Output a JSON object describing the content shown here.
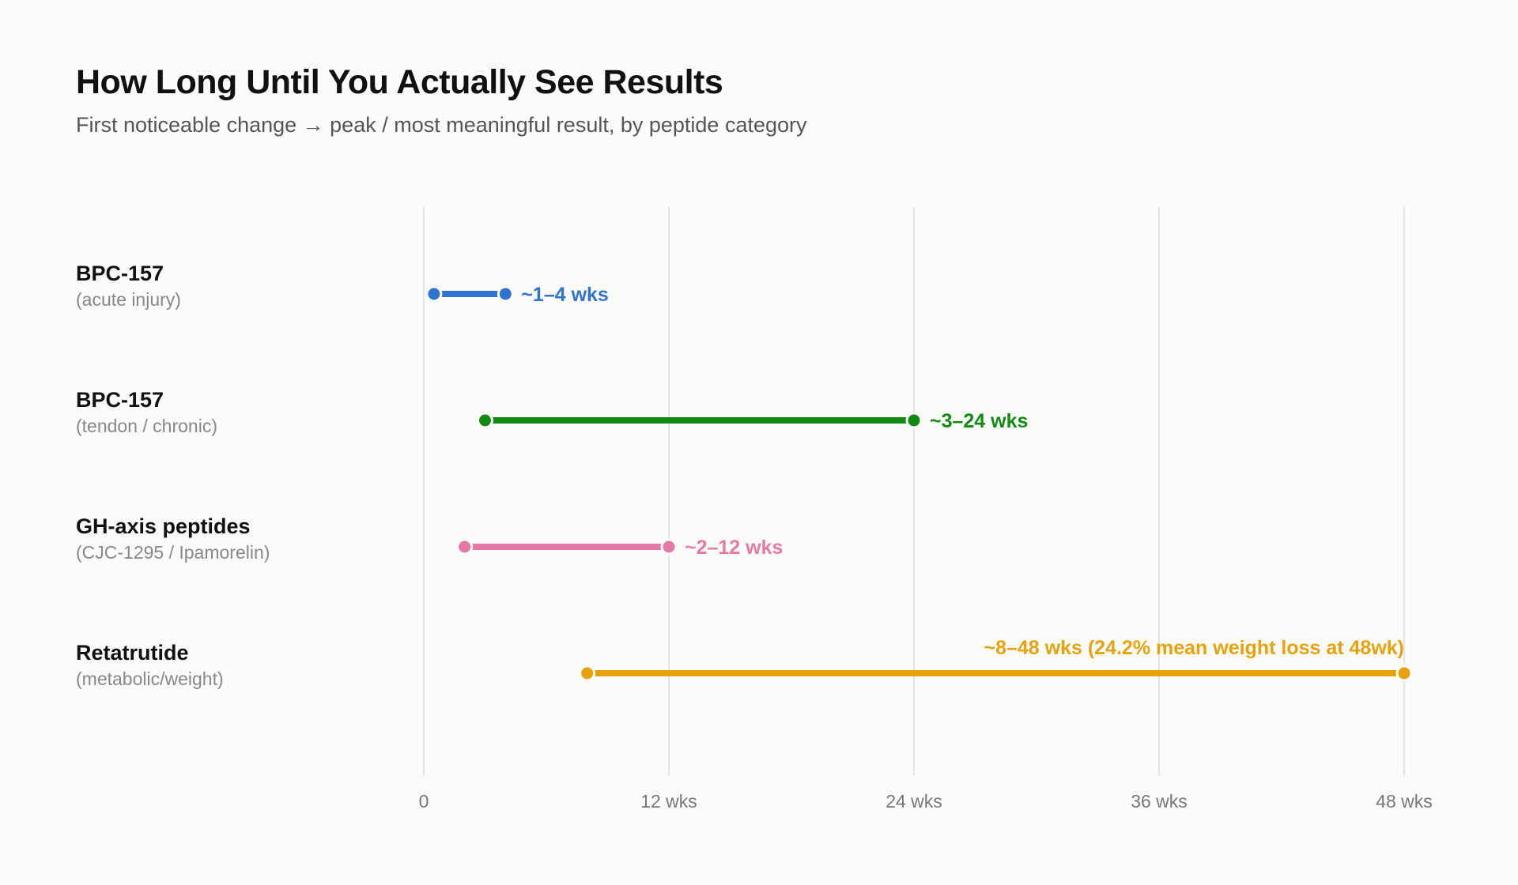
{
  "chart_data": {
    "type": "range_dot",
    "title": "How Long Until You Actually See Results",
    "subtitle": "First noticeable change → peak / most meaningful result, by peptide category",
    "xlabel": "",
    "xlim": [
      0,
      48
    ],
    "x_ticks": [
      0,
      12,
      24,
      36,
      48
    ],
    "x_tick_labels": [
      "0",
      "12 wks",
      "24 wks",
      "36 wks",
      "48 wks"
    ],
    "grid": "vertical",
    "rows": [
      {
        "name": "BPC-157",
        "sub": "(acute injury)",
        "start": 0.5,
        "end": 4,
        "label": "~1–4 wks",
        "label_position": "right",
        "color": "#2f74d0"
      },
      {
        "name": "BPC-157",
        "sub": "(tendon / chronic)",
        "start": 3,
        "end": 24,
        "label": "~3–24 wks",
        "label_position": "right",
        "color": "#138a13"
      },
      {
        "name": "GH-axis peptides",
        "sub": "(CJC-1295 / Ipamorelin)",
        "start": 2,
        "end": 12,
        "label": "~2–12 wks",
        "label_position": "right",
        "color": "#e57aa6"
      },
      {
        "name": "Retatrutide",
        "sub": "(metabolic/weight)",
        "start": 8,
        "end": 48,
        "label": "~8–48 wks (24.2% mean weight loss at 48wk)",
        "label_position": "above",
        "color": "#e8a20c"
      }
    ]
  }
}
